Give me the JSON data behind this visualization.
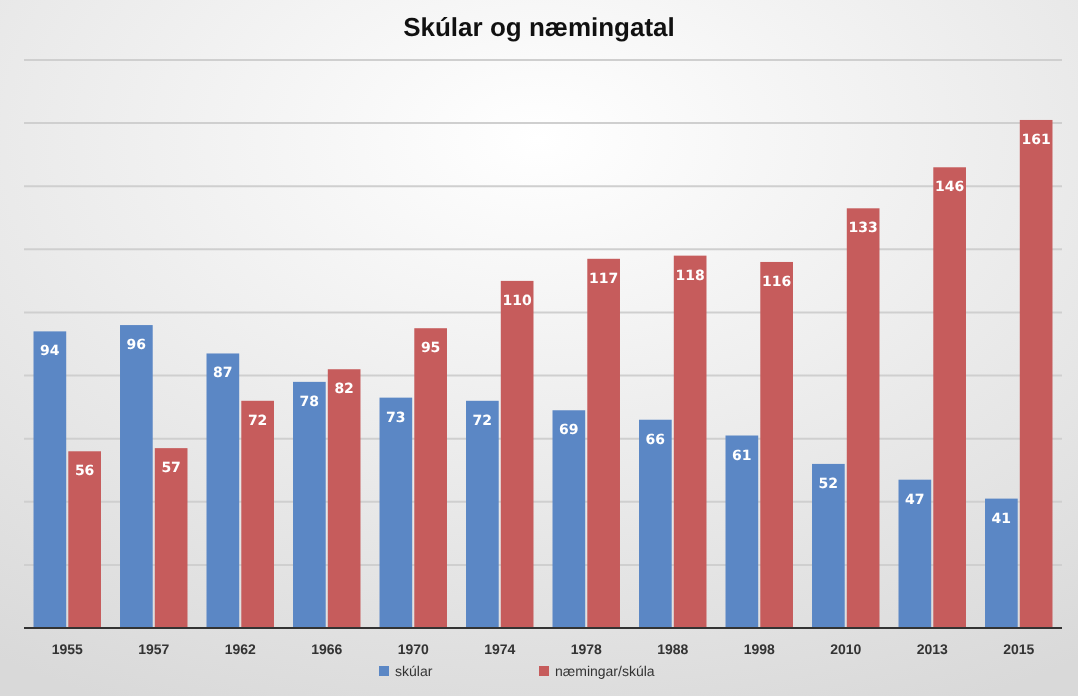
{
  "chart_data": {
    "type": "bar",
    "title": "Skúlar og næmingatal",
    "categories": [
      "1955",
      "1957",
      "1962",
      "1966",
      "1970",
      "1974",
      "1978",
      "1988",
      "1998",
      "2010",
      "2013",
      "2015"
    ],
    "series": [
      {
        "name": "skúlar",
        "color": "#5b87c5",
        "values": [
          94,
          96,
          87,
          78,
          73,
          72,
          69,
          66,
          61,
          52,
          47,
          41
        ]
      },
      {
        "name": "næmingar/skúla",
        "color": "#c65c5c",
        "values": [
          56,
          57,
          72,
          82,
          95,
          110,
          117,
          118,
          116,
          133,
          146,
          161
        ]
      }
    ],
    "ylim": [
      0,
      180
    ],
    "yticks": [
      {
        "value": 0,
        "label": null
      },
      {
        "value": 20,
        "label": null
      },
      {
        "value": 40,
        "label": null
      },
      {
        "value": 60,
        "label": null
      },
      {
        "value": 80,
        "label": null
      },
      {
        "value": 100,
        "label": null
      },
      {
        "value": 120,
        "label": null
      },
      {
        "value": 140,
        "label": null
      },
      {
        "value": 160,
        "label": null
      },
      {
        "value": 180,
        "label": null
      }
    ],
    "tick_labels": "x",
    "grid": "y",
    "data_labels": true,
    "legend": "bottom"
  }
}
